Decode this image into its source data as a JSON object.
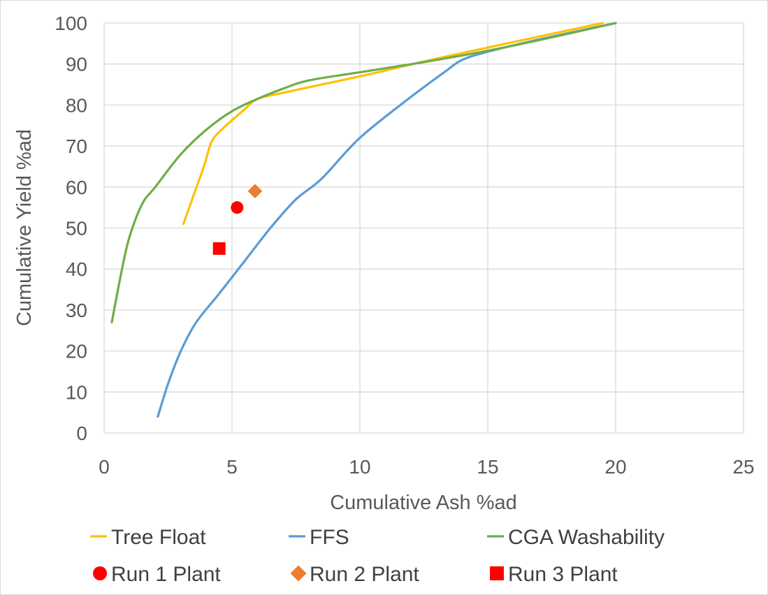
{
  "chart_data": {
    "type": "scatter",
    "title": "",
    "xlabel": "Cumulative Ash %ad",
    "ylabel": "Cumulative Yield %ad",
    "xlim": [
      0,
      25
    ],
    "ylim": [
      0,
      100
    ],
    "xticks": [
      0,
      5,
      10,
      15,
      20,
      25
    ],
    "yticks": [
      0,
      10,
      20,
      30,
      40,
      50,
      60,
      70,
      80,
      90,
      100
    ],
    "grid": "horizontal and vertical major gridlines",
    "legend_position": "bottom",
    "series": [
      {
        "name": "Tree Float",
        "kind": "line",
        "color": "#ffc000",
        "points": [
          [
            3.1,
            51
          ],
          [
            3.5,
            58
          ],
          [
            3.9,
            65
          ],
          [
            4.2,
            71
          ],
          [
            4.6,
            74
          ],
          [
            5.5,
            79
          ],
          [
            6.0,
            81.5
          ],
          [
            7.0,
            83
          ],
          [
            10.0,
            87
          ],
          [
            13.5,
            92
          ],
          [
            19.5,
            100
          ]
        ]
      },
      {
        "name": "FFS",
        "kind": "line",
        "color": "#5b9bd5",
        "points": [
          [
            2.1,
            4
          ],
          [
            2.5,
            12
          ],
          [
            3.0,
            20
          ],
          [
            3.6,
            27
          ],
          [
            4.5,
            34
          ],
          [
            5.5,
            42
          ],
          [
            6.5,
            50
          ],
          [
            7.5,
            57
          ],
          [
            8.5,
            62
          ],
          [
            10.0,
            72
          ],
          [
            12.0,
            82
          ],
          [
            13.3,
            88
          ],
          [
            14.0,
            91
          ],
          [
            15.0,
            93
          ],
          [
            17.0,
            96
          ],
          [
            20.0,
            100
          ]
        ]
      },
      {
        "name": "CGA Washability",
        "kind": "line",
        "color": "#70ad47",
        "points": [
          [
            0.3,
            27
          ],
          [
            0.7,
            40
          ],
          [
            1.0,
            48
          ],
          [
            1.5,
            56
          ],
          [
            2.0,
            60
          ],
          [
            3.0,
            68
          ],
          [
            4.0,
            74
          ],
          [
            5.0,
            78.5
          ],
          [
            6.0,
            81.5
          ],
          [
            7.0,
            84
          ],
          [
            8.0,
            86
          ],
          [
            10.0,
            88
          ],
          [
            13.0,
            91
          ],
          [
            16.0,
            94.5
          ],
          [
            20.0,
            100
          ]
        ]
      },
      {
        "name": "Run 1 Plant",
        "kind": "marker",
        "marker": "circle",
        "color": "#ff0000",
        "points": [
          [
            5.2,
            55
          ]
        ]
      },
      {
        "name": "Run 2 Plant",
        "kind": "marker",
        "marker": "diamond",
        "color": "#ed7d31",
        "points": [
          [
            5.9,
            59
          ]
        ]
      },
      {
        "name": "Run 3 Plant",
        "kind": "marker",
        "marker": "square",
        "color": "#ff0000",
        "points": [
          [
            4.5,
            45
          ]
        ]
      }
    ]
  }
}
